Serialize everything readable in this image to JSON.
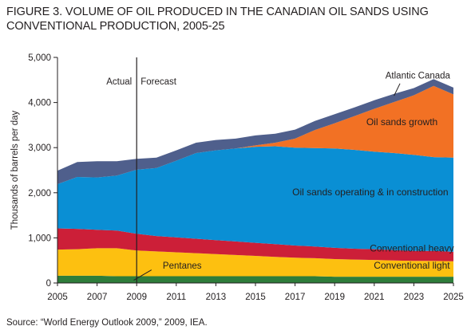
{
  "title_line1": "FIGURE 3. VOLUME OF OIL PRODUCED IN THE CANADIAN OIL SANDS USING",
  "title_line2": "CONVENTIONAL PRODUCTION, 2005-25",
  "source": "Source: “World Energy Outlook 2009,” 2009, IEA.",
  "chart_data": {
    "type": "area",
    "stacked": true,
    "ylabel": "Thousands of barrels per day",
    "xlabel": "",
    "xlim": [
      2005,
      2025
    ],
    "ylim": [
      0,
      5000
    ],
    "x_ticks": [
      "2005",
      "2007",
      "2009",
      "2011",
      "2013",
      "2015",
      "2017",
      "2019",
      "2021",
      "2023",
      "2025"
    ],
    "y_ticks": [
      "0",
      "1,000",
      "2,000",
      "3,000",
      "4,000",
      "5,000"
    ],
    "divider": {
      "x": 2009,
      "left_label": "Actual",
      "right_label": "Forecast"
    },
    "x": [
      2005,
      2006,
      2007,
      2008,
      2009,
      2010,
      2011,
      2012,
      2013,
      2014,
      2015,
      2016,
      2017,
      2018,
      2019,
      2020,
      2021,
      2022,
      2023,
      2024,
      2025
    ],
    "series": [
      {
        "name": "Pentanes",
        "color": "#2e7d3a",
        "values": [
          160,
          160,
          160,
          150,
          150,
          150,
          150,
          150,
          150,
          150,
          150,
          150,
          150,
          150,
          140,
          140,
          140,
          140,
          140,
          140,
          140
        ]
      },
      {
        "name": "Conventional light",
        "color": "#fdc010",
        "values": [
          580,
          590,
          610,
          620,
          570,
          550,
          530,
          510,
          490,
          470,
          450,
          430,
          410,
          400,
          390,
          380,
          370,
          360,
          350,
          350,
          340
        ]
      },
      {
        "name": "Conventional heavy",
        "color": "#cc1f38",
        "values": [
          470,
          450,
          410,
          390,
          370,
          340,
          330,
          320,
          310,
          300,
          290,
          280,
          270,
          260,
          250,
          240,
          240,
          230,
          220,
          220,
          210
        ]
      },
      {
        "name": "Oil sands operating & in construction",
        "color": "#0a8fd4",
        "values": [
          980,
          1150,
          1160,
          1220,
          1420,
          1510,
          1700,
          1900,
          1990,
          2060,
          2130,
          2170,
          2170,
          2180,
          2200,
          2190,
          2160,
          2150,
          2130,
          2080,
          2090
        ]
      },
      {
        "name": "Oil sands growth",
        "color": "#f27124",
        "values": [
          0,
          0,
          0,
          0,
          0,
          0,
          0,
          0,
          0,
          0,
          30,
          80,
          200,
          400,
          560,
          750,
          950,
          1130,
          1320,
          1580,
          1400
        ]
      },
      {
        "name": "Atlantic Canada",
        "color": "#4f5f8c",
        "values": [
          300,
          330,
          360,
          320,
          240,
          230,
          230,
          230,
          230,
          220,
          220,
          200,
          200,
          200,
          200,
          190,
          190,
          180,
          160,
          150,
          150
        ]
      }
    ],
    "annotations": [
      {
        "text": "Atlantic Canada",
        "x": 2023.2,
        "y": 4530
      },
      {
        "text": "Oil sands growth",
        "x": 2022.4,
        "y": 3500
      },
      {
        "text": "Oil sands operating & in construction",
        "x": 2020.8,
        "y": 1940
      },
      {
        "text": "Conventional heavy",
        "x": 2022.9,
        "y": 700
      },
      {
        "text": "Conventional light",
        "x": 2022.9,
        "y": 320
      },
      {
        "text": "Pentanes",
        "x": 2011.3,
        "y": 320
      }
    ]
  }
}
